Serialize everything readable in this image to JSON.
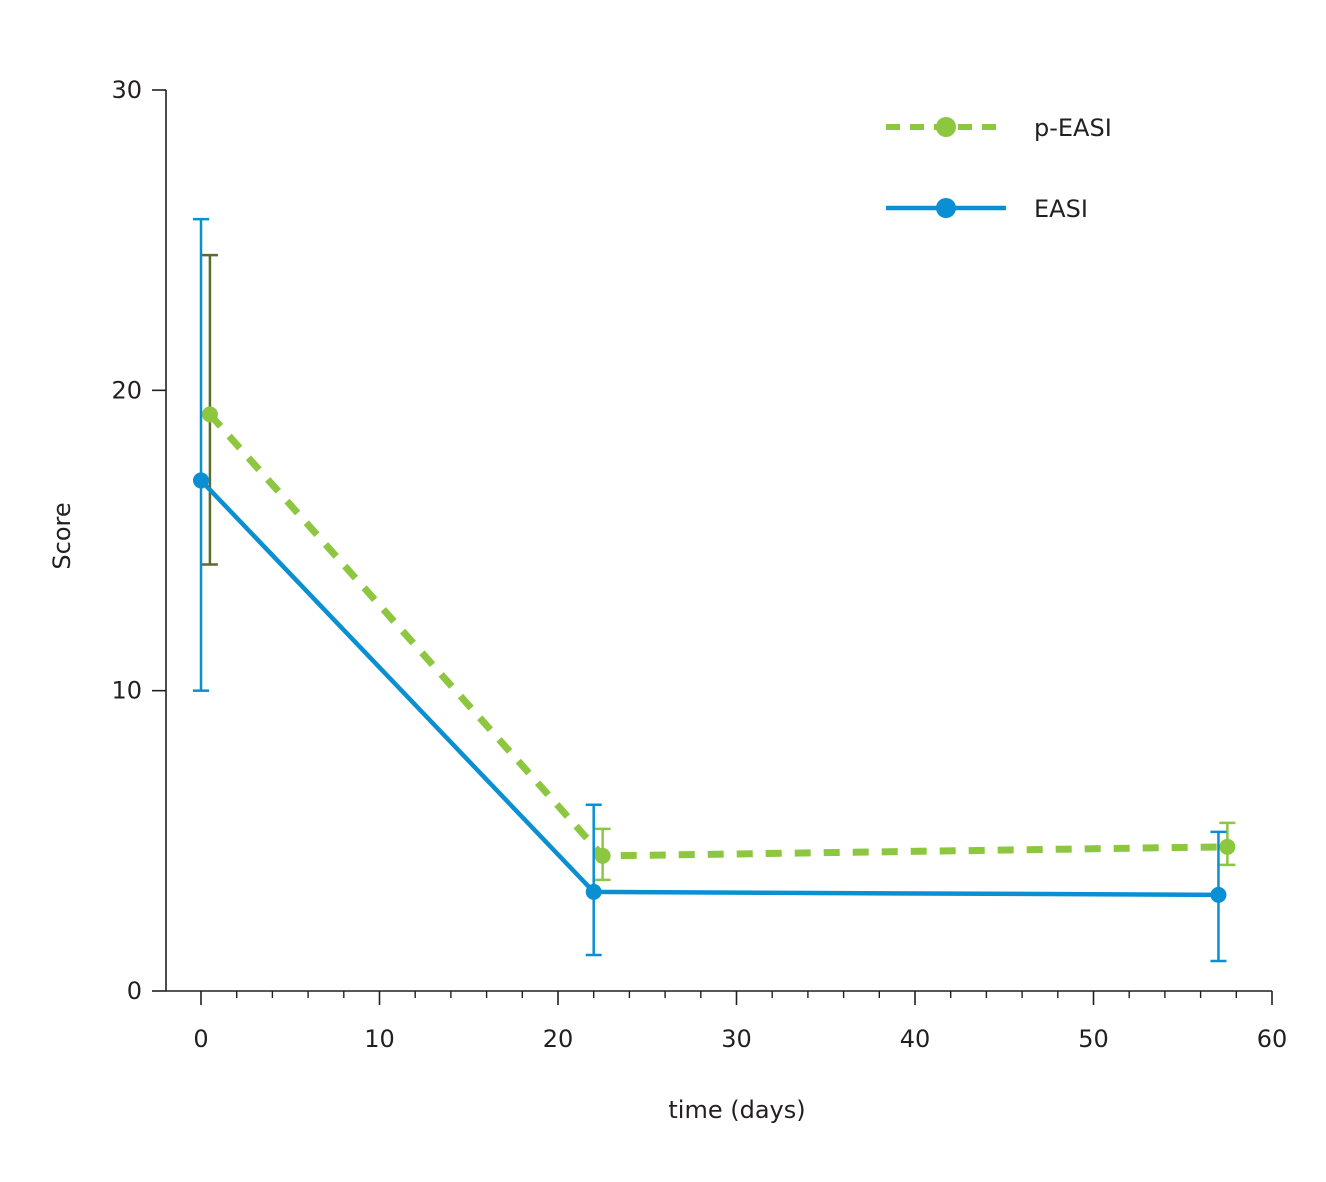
{
  "chart_data": {
    "type": "line",
    "title": "",
    "xlabel": "time (days)",
    "ylabel": "Score",
    "xlim": [
      -2,
      60
    ],
    "ylim": [
      0,
      30
    ],
    "x_ticks": [
      "0",
      "10",
      "20",
      "30",
      "40",
      "50",
      "60"
    ],
    "y_ticks": [
      "0",
      "10",
      "20",
      "30"
    ],
    "grid": false,
    "legend_position": "top-right",
    "series": [
      {
        "name": "p-EASI",
        "color": "#8dc63f",
        "errorbar_color_first": "#5b6b2a",
        "line_style": "dashed",
        "points": [
          {
            "x": 0.5,
            "y": 19.2,
            "err_low": 14.2,
            "err_high": 24.5
          },
          {
            "x": 22.5,
            "y": 4.5,
            "err_low": 3.7,
            "err_high": 5.4
          },
          {
            "x": 57.5,
            "y": 4.8,
            "err_low": 4.2,
            "err_high": 5.6
          }
        ]
      },
      {
        "name": "EASI",
        "color": "#0a8fd3",
        "line_style": "solid",
        "points": [
          {
            "x": 0,
            "y": 17.0,
            "err_low": 10.0,
            "err_high": 25.7
          },
          {
            "x": 22,
            "y": 3.3,
            "err_low": 1.2,
            "err_high": 6.2
          },
          {
            "x": 57,
            "y": 3.2,
            "err_low": 1.0,
            "err_high": 5.3
          }
        ]
      }
    ]
  }
}
